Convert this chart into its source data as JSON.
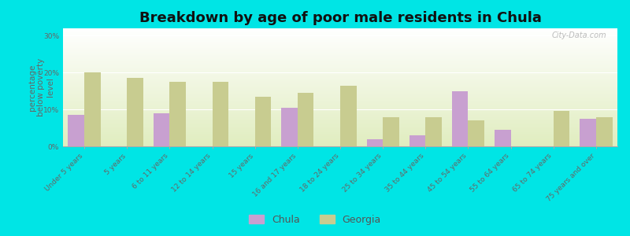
{
  "title": "Breakdown by age of poor male residents in Chula",
  "ylabel": "percentage\nbelow poverty\nlevel",
  "categories": [
    "Under 5 years",
    "5 years",
    "6 to 11 years",
    "12 to 14 years",
    "15 years",
    "16 and 17 years",
    "18 to 24 years",
    "25 to 34 years",
    "35 to 44 years",
    "45 to 54 years",
    "55 to 64 years",
    "65 to 74 years",
    "75 years and over"
  ],
  "chula_values": [
    8.5,
    0,
    9.0,
    0,
    0,
    10.5,
    0,
    2.0,
    3.0,
    15.0,
    4.5,
    0,
    7.5
  ],
  "georgia_values": [
    20.0,
    18.5,
    17.5,
    17.5,
    13.5,
    14.5,
    16.5,
    8.0,
    8.0,
    7.0,
    0,
    9.5,
    8.0
  ],
  "chula_color": "#c8a0d0",
  "georgia_color": "#c8cc90",
  "outer_bg": "#00e5e5",
  "ylim": [
    0,
    32
  ],
  "yticks": [
    0,
    10,
    20,
    30
  ],
  "ytick_labels": [
    "0%",
    "10%",
    "20%",
    "30%"
  ],
  "bar_width": 0.38,
  "title_fontsize": 13,
  "axis_label_fontsize": 7.5,
  "tick_fontsize": 6.5,
  "legend_fontsize": 9
}
